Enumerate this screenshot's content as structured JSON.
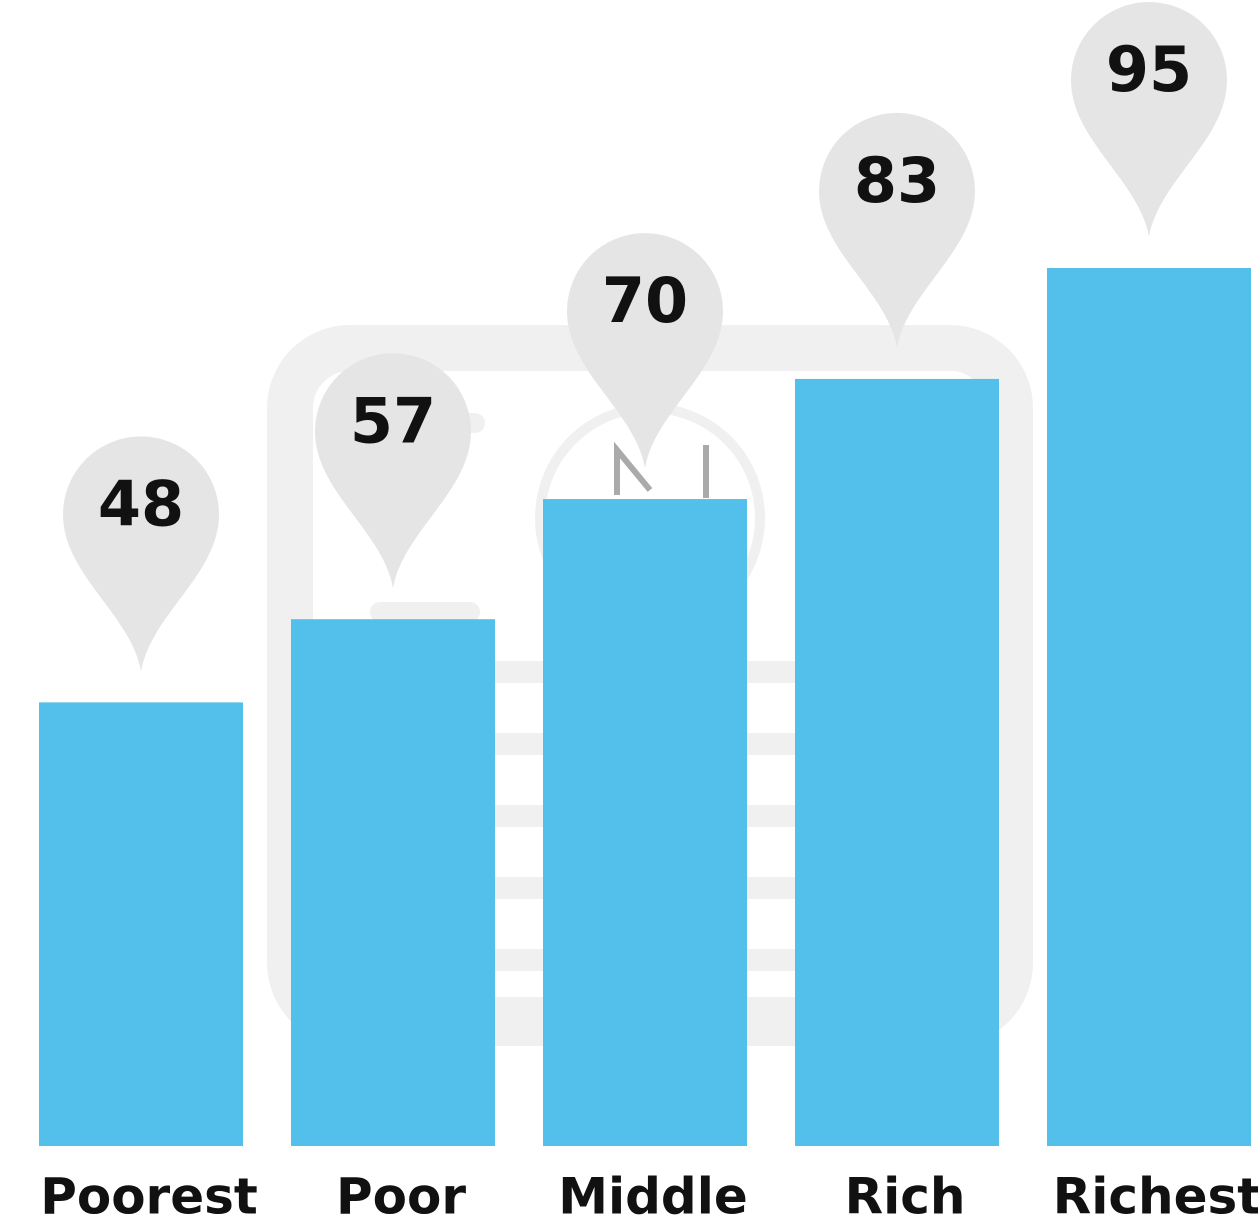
{
  "chart_data": {
    "type": "bar",
    "categories": [
      "Poorest",
      "Poor",
      "Middle",
      "Rich",
      "Richest"
    ],
    "values": [
      48,
      57,
      70,
      83,
      95
    ],
    "color": "#52c0ea",
    "ylim": [
      0,
      124
    ]
  }
}
